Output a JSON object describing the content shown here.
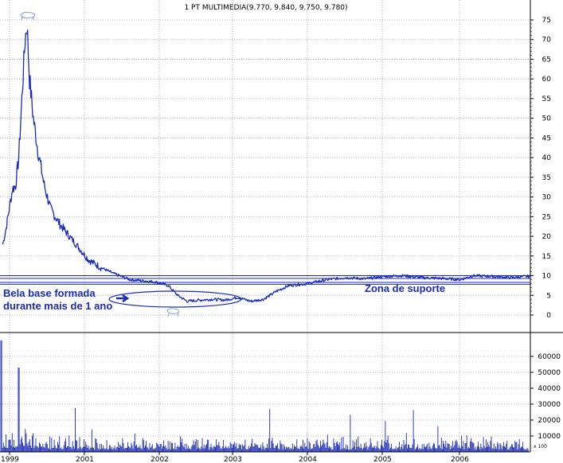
{
  "colors": {
    "price_line": "#1a2bb8",
    "volume_bars": "#1a2bb8",
    "grid": "#aab4c8",
    "annotation": "#1a2bb8",
    "background": "#ffffff"
  },
  "chart_data": [
    {
      "type": "line",
      "title": "1 PT MULTIMEDIA(9.770, 9.840, 9.750, 9.780)",
      "x_ticks": [
        "1999",
        "2001",
        "2002",
        "2003",
        "2004",
        "2005",
        "2006"
      ],
      "y_ticks": [
        "0",
        "5",
        "10",
        "15",
        "20",
        "25",
        "30",
        "35",
        "40",
        "45",
        "50",
        "55",
        "60",
        "65",
        "70",
        "75"
      ],
      "ylim": [
        0,
        75
      ],
      "x_axis_side": "bottom",
      "y_axis_side": "right",
      "grid": true,
      "series": [
        {
          "values_approx": [
            [
              1998.7,
              18
            ],
            [
              1998.75,
              22
            ],
            [
              1998.8,
              27
            ],
            [
              1998.85,
              32
            ],
            [
              1998.9,
              33
            ],
            [
              1998.95,
              40
            ],
            [
              1999.0,
              55
            ],
            [
              1999.05,
              70
            ],
            [
              1999.08,
              74
            ],
            [
              1999.12,
              60
            ],
            [
              1999.18,
              50
            ],
            [
              1999.25,
              42
            ],
            [
              1999.35,
              33
            ],
            [
              1999.45,
              27
            ],
            [
              1999.6,
              23
            ],
            [
              1999.75,
              20
            ],
            [
              1999.9,
              17
            ],
            [
              2000.05,
              14
            ],
            [
              2000.25,
              12
            ],
            [
              2000.45,
              10.5
            ],
            [
              2000.7,
              9
            ],
            [
              2000.9,
              8.7
            ],
            [
              2001.1,
              8.4
            ],
            [
              2001.3,
              7.5
            ],
            [
              2001.45,
              5
            ],
            [
              2001.6,
              3.5
            ],
            [
              2001.8,
              3.8
            ],
            [
              2002.0,
              4
            ],
            [
              2002.2,
              3.8
            ],
            [
              2002.4,
              4.5
            ],
            [
              2002.6,
              3.5
            ],
            [
              2002.8,
              4
            ],
            [
              2003.0,
              6
            ],
            [
              2003.2,
              7.5
            ],
            [
              2003.5,
              8
            ],
            [
              2003.8,
              9
            ],
            [
              2004.1,
              9.5
            ],
            [
              2004.4,
              9.2
            ],
            [
              2004.7,
              9.8
            ],
            [
              2005.0,
              10
            ],
            [
              2005.3,
              9.5
            ],
            [
              2005.6,
              9.3
            ],
            [
              2005.9,
              9
            ],
            [
              2006.1,
              10
            ],
            [
              2006.4,
              9.8
            ],
            [
              2006.7,
              9.5
            ],
            [
              2006.9,
              9.8
            ],
            [
              2007.0,
              9.8
            ]
          ]
        }
      ],
      "reference_lines": [
        10,
        9.3,
        8.3,
        7.8
      ],
      "annotations": [
        "Bela base formada",
        "durante mais de 1 ano",
        "Zona de suporte"
      ]
    },
    {
      "type": "bar",
      "y_ticks": [
        "10000",
        "20000",
        "30000",
        "40000",
        "50000",
        "60000"
      ],
      "ylim": [
        0,
        70000
      ],
      "y_axis_side": "right",
      "scale_label": "x 100"
    }
  ]
}
